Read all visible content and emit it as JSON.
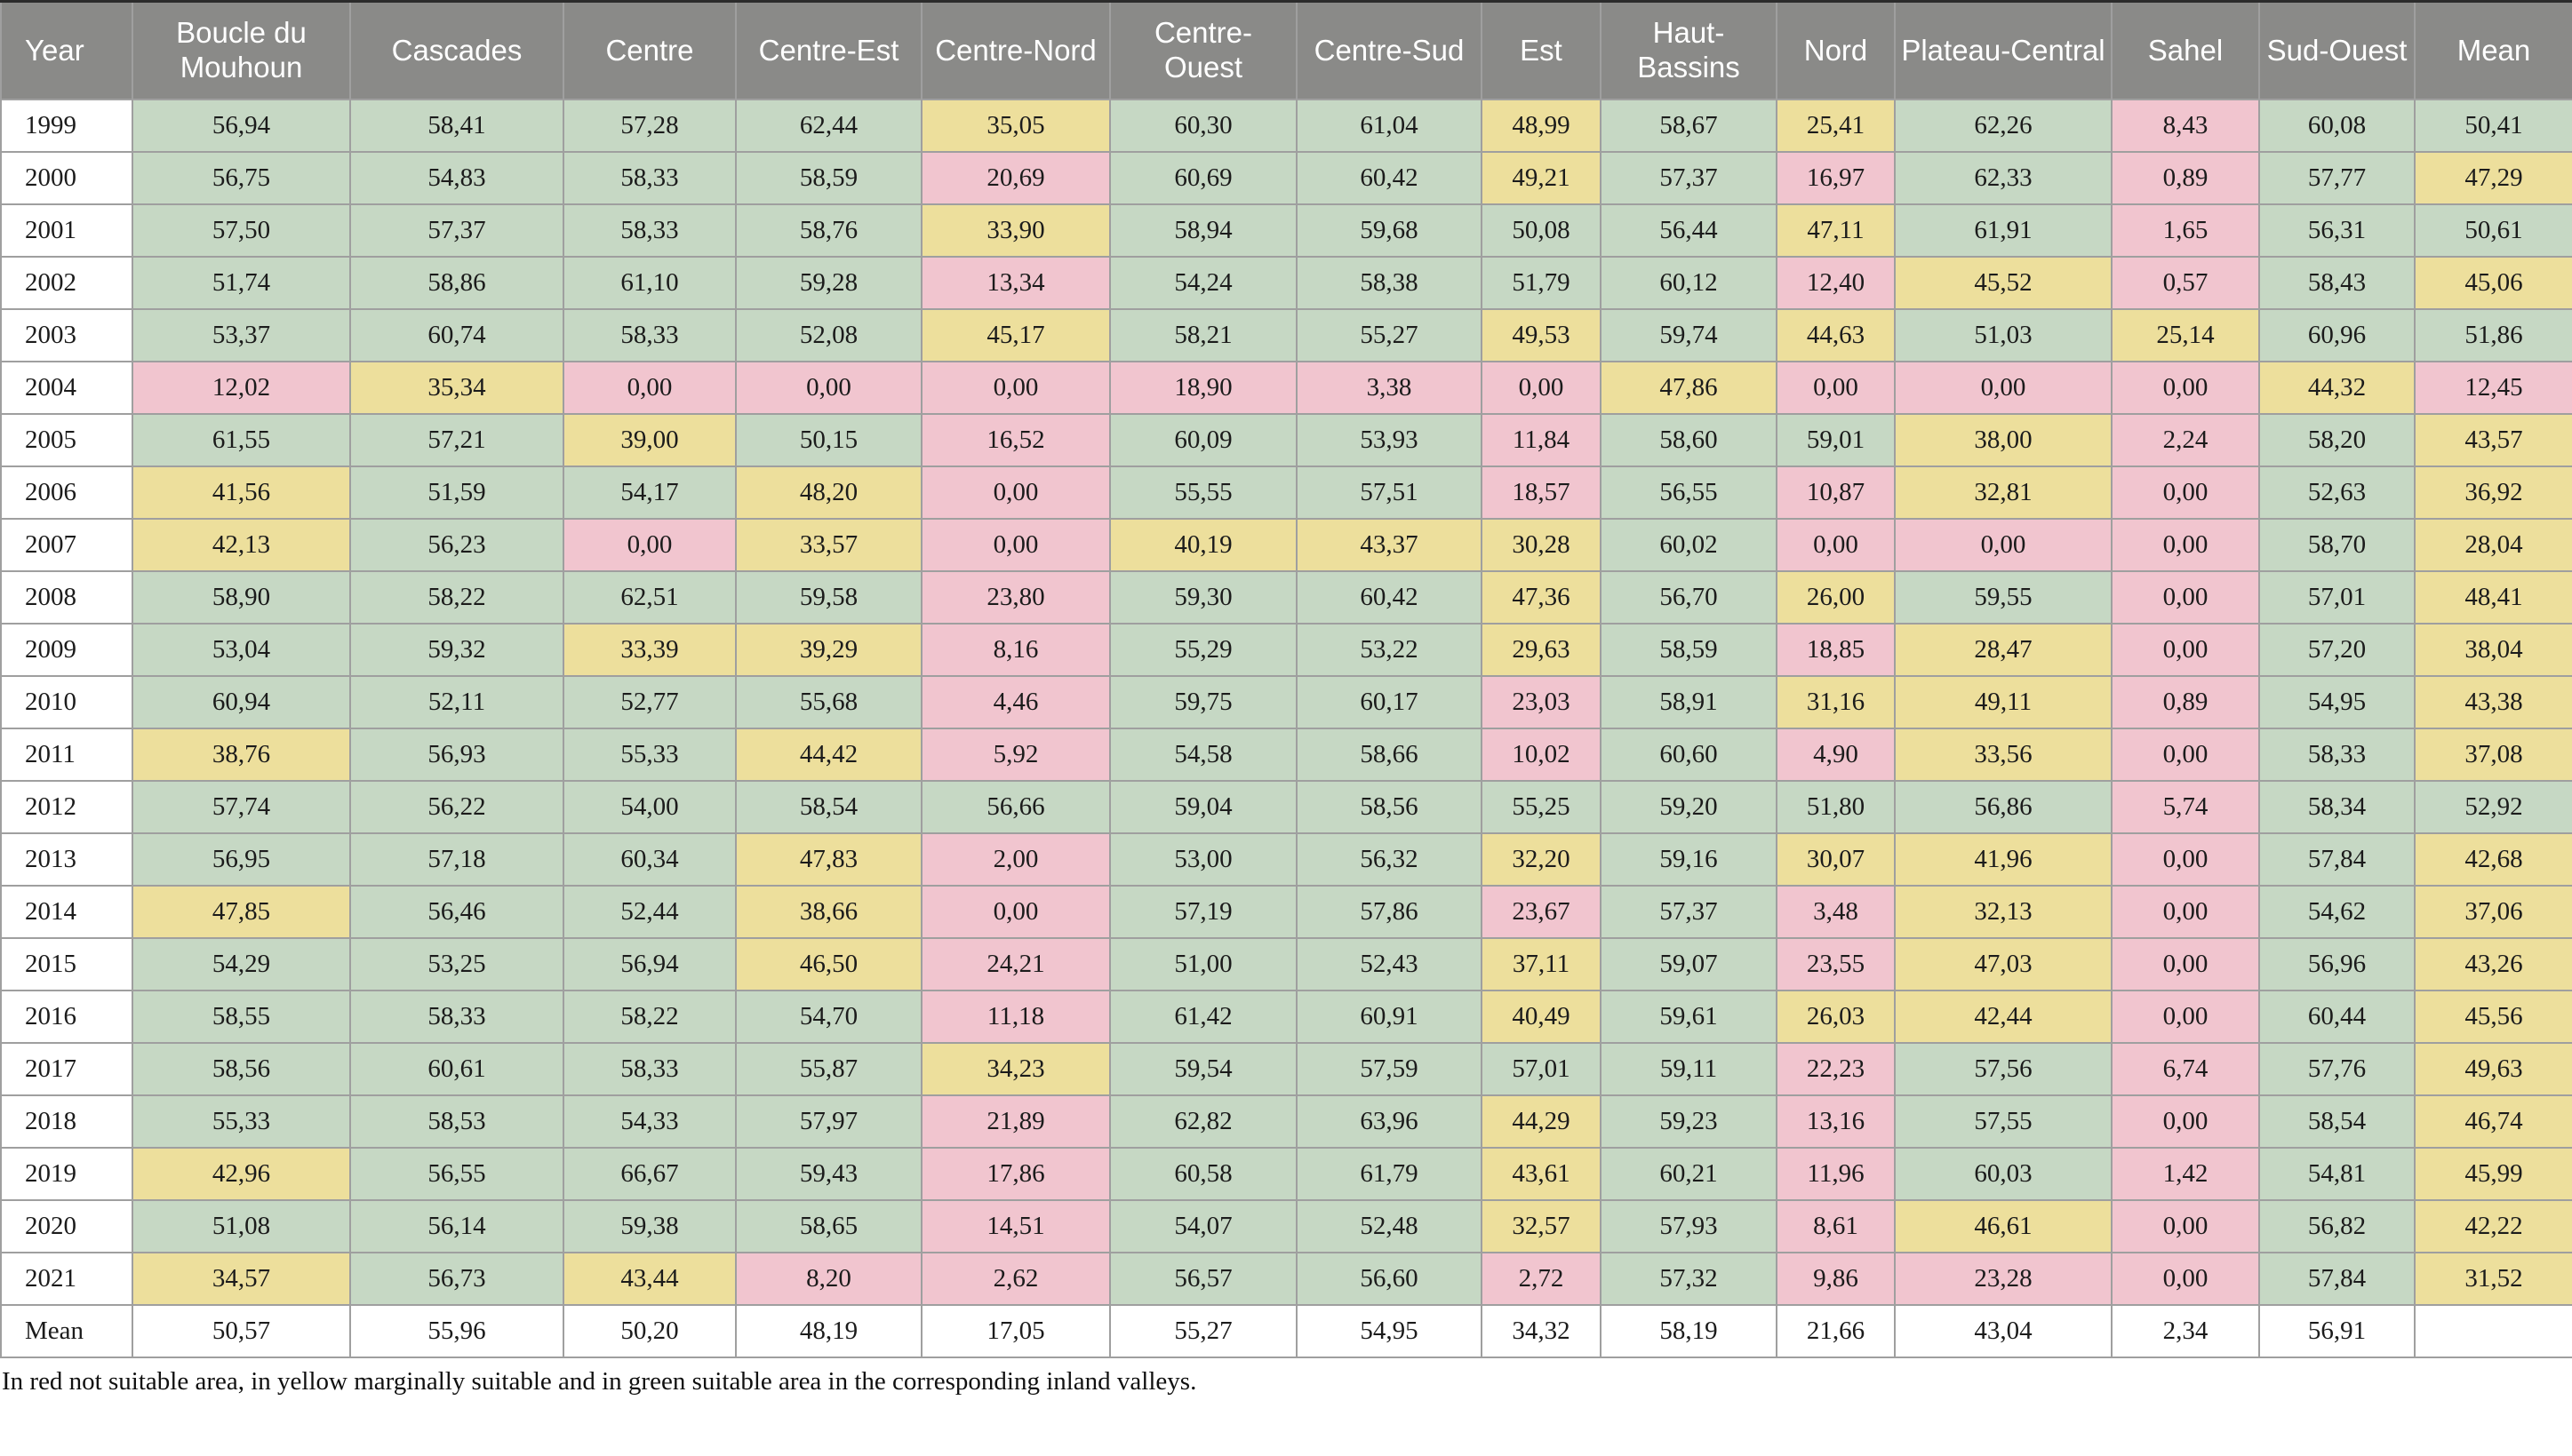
{
  "footnote": "In red not suitable area, in yellow marginally suitable and in green suitable area in the corresponding inland valleys.",
  "colors": {
    "header_bg": "#8a8a88",
    "header_text": "#ffffff",
    "suitable_green": "#c6d8c4",
    "marginally_suitable_yellow": "#eddf9c",
    "not_suitable_red": "#f1c5cf",
    "grid_border": "#9f9f9f",
    "mean_row_bg": "#ffffff"
  },
  "legend": {
    "red": "not suitable area",
    "yellow": "marginally suitable",
    "green": "suitable area"
  },
  "chart_data": {
    "type": "table",
    "title": "",
    "value_format": "comma-decimal percent of suitable area",
    "color_rule": {
      "green_min": 50,
      "yellow_min": 25,
      "red_below": 25
    },
    "columns": [
      "Year",
      "Boucle du Mouhoun",
      "Cascades",
      "Centre",
      "Centre-Est",
      "Centre-Nord",
      "Centre-Ouest",
      "Centre-Sud",
      "Est",
      "Haut-Bassins",
      "Nord",
      "Plateau-Central",
      "Sahel",
      "Sud-Ouest",
      "Mean"
    ],
    "rows": [
      {
        "year": "1999",
        "values": [
          "56,94",
          "58,41",
          "57,28",
          "62,44",
          "35,05",
          "60,30",
          "61,04",
          "48,99",
          "58,67",
          "25,41",
          "62,26",
          "8,43",
          "60,08",
          "50,41"
        ]
      },
      {
        "year": "2000",
        "values": [
          "56,75",
          "54,83",
          "58,33",
          "58,59",
          "20,69",
          "60,69",
          "60,42",
          "49,21",
          "57,37",
          "16,97",
          "62,33",
          "0,89",
          "57,77",
          "47,29"
        ]
      },
      {
        "year": "2001",
        "values": [
          "57,50",
          "57,37",
          "58,33",
          "58,76",
          "33,90",
          "58,94",
          "59,68",
          "50,08",
          "56,44",
          "47,11",
          "61,91",
          "1,65",
          "56,31",
          "50,61"
        ]
      },
      {
        "year": "2002",
        "values": [
          "51,74",
          "58,86",
          "61,10",
          "59,28",
          "13,34",
          "54,24",
          "58,38",
          "51,79",
          "60,12",
          "12,40",
          "45,52",
          "0,57",
          "58,43",
          "45,06"
        ]
      },
      {
        "year": "2003",
        "values": [
          "53,37",
          "60,74",
          "58,33",
          "52,08",
          "45,17",
          "58,21",
          "55,27",
          "49,53",
          "59,74",
          "44,63",
          "51,03",
          "25,14",
          "60,96",
          "51,86"
        ]
      },
      {
        "year": "2004",
        "values": [
          "12,02",
          "35,34",
          "0,00",
          "0,00",
          "0,00",
          "18,90",
          "3,38",
          "0,00",
          "47,86",
          "0,00",
          "0,00",
          "0,00",
          "44,32",
          "12,45"
        ]
      },
      {
        "year": "2005",
        "values": [
          "61,55",
          "57,21",
          "39,00",
          "50,15",
          "16,52",
          "60,09",
          "53,93",
          "11,84",
          "58,60",
          "59,01",
          "38,00",
          "2,24",
          "58,20",
          "43,57"
        ]
      },
      {
        "year": "2006",
        "values": [
          "41,56",
          "51,59",
          "54,17",
          "48,20",
          "0,00",
          "55,55",
          "57,51",
          "18,57",
          "56,55",
          "10,87",
          "32,81",
          "0,00",
          "52,63",
          "36,92"
        ]
      },
      {
        "year": "2007",
        "values": [
          "42,13",
          "56,23",
          "0,00",
          "33,57",
          "0,00",
          "40,19",
          "43,37",
          "30,28",
          "60,02",
          "0,00",
          "0,00",
          "0,00",
          "58,70",
          "28,04"
        ]
      },
      {
        "year": "2008",
        "values": [
          "58,90",
          "58,22",
          "62,51",
          "59,58",
          "23,80",
          "59,30",
          "60,42",
          "47,36",
          "56,70",
          "26,00",
          "59,55",
          "0,00",
          "57,01",
          "48,41"
        ]
      },
      {
        "year": "2009",
        "values": [
          "53,04",
          "59,32",
          "33,39",
          "39,29",
          "8,16",
          "55,29",
          "53,22",
          "29,63",
          "58,59",
          "18,85",
          "28,47",
          "0,00",
          "57,20",
          "38,04"
        ]
      },
      {
        "year": "2010",
        "values": [
          "60,94",
          "52,11",
          "52,77",
          "55,68",
          "4,46",
          "59,75",
          "60,17",
          "23,03",
          "58,91",
          "31,16",
          "49,11",
          "0,89",
          "54,95",
          "43,38"
        ]
      },
      {
        "year": "2011",
        "values": [
          "38,76",
          "56,93",
          "55,33",
          "44,42",
          "5,92",
          "54,58",
          "58,66",
          "10,02",
          "60,60",
          "4,90",
          "33,56",
          "0,00",
          "58,33",
          "37,08"
        ]
      },
      {
        "year": "2012",
        "values": [
          "57,74",
          "56,22",
          "54,00",
          "58,54",
          "56,66",
          "59,04",
          "58,56",
          "55,25",
          "59,20",
          "51,80",
          "56,86",
          "5,74",
          "58,34",
          "52,92"
        ]
      },
      {
        "year": "2013",
        "values": [
          "56,95",
          "57,18",
          "60,34",
          "47,83",
          "2,00",
          "53,00",
          "56,32",
          "32,20",
          "59,16",
          "30,07",
          "41,96",
          "0,00",
          "57,84",
          "42,68"
        ]
      },
      {
        "year": "2014",
        "values": [
          "47,85",
          "56,46",
          "52,44",
          "38,66",
          "0,00",
          "57,19",
          "57,86",
          "23,67",
          "57,37",
          "3,48",
          "32,13",
          "0,00",
          "54,62",
          "37,06"
        ]
      },
      {
        "year": "2015",
        "values": [
          "54,29",
          "53,25",
          "56,94",
          "46,50",
          "24,21",
          "51,00",
          "52,43",
          "37,11",
          "59,07",
          "23,55",
          "47,03",
          "0,00",
          "56,96",
          "43,26"
        ]
      },
      {
        "year": "2016",
        "values": [
          "58,55",
          "58,33",
          "58,22",
          "54,70",
          "11,18",
          "61,42",
          "60,91",
          "40,49",
          "59,61",
          "26,03",
          "42,44",
          "0,00",
          "60,44",
          "45,56"
        ]
      },
      {
        "year": "2017",
        "values": [
          "58,56",
          "60,61",
          "58,33",
          "55,87",
          "34,23",
          "59,54",
          "57,59",
          "57,01",
          "59,11",
          "22,23",
          "57,56",
          "6,74",
          "57,76",
          "49,63"
        ]
      },
      {
        "year": "2018",
        "values": [
          "55,33",
          "58,53",
          "54,33",
          "57,97",
          "21,89",
          "62,82",
          "63,96",
          "44,29",
          "59,23",
          "13,16",
          "57,55",
          "0,00",
          "58,54",
          "46,74"
        ]
      },
      {
        "year": "2019",
        "values": [
          "42,96",
          "56,55",
          "66,67",
          "59,43",
          "17,86",
          "60,58",
          "61,79",
          "43,61",
          "60,21",
          "11,96",
          "60,03",
          "1,42",
          "54,81",
          "45,99"
        ]
      },
      {
        "year": "2020",
        "values": [
          "51,08",
          "56,14",
          "59,38",
          "58,65",
          "14,51",
          "54,07",
          "52,48",
          "32,57",
          "57,93",
          "8,61",
          "46,61",
          "0,00",
          "56,82",
          "42,22"
        ]
      },
      {
        "year": "2021",
        "values": [
          "34,57",
          "56,73",
          "43,44",
          "8,20",
          "2,62",
          "56,57",
          "56,60",
          "2,72",
          "57,32",
          "9,86",
          "23,28",
          "0,00",
          "57,84",
          "31,52"
        ]
      },
      {
        "year": "Mean",
        "values": [
          "50,57",
          "55,96",
          "50,20",
          "48,19",
          "17,05",
          "55,27",
          "54,95",
          "34,32",
          "58,19",
          "21,66",
          "43,04",
          "2,34",
          "56,91",
          ""
        ]
      }
    ]
  }
}
